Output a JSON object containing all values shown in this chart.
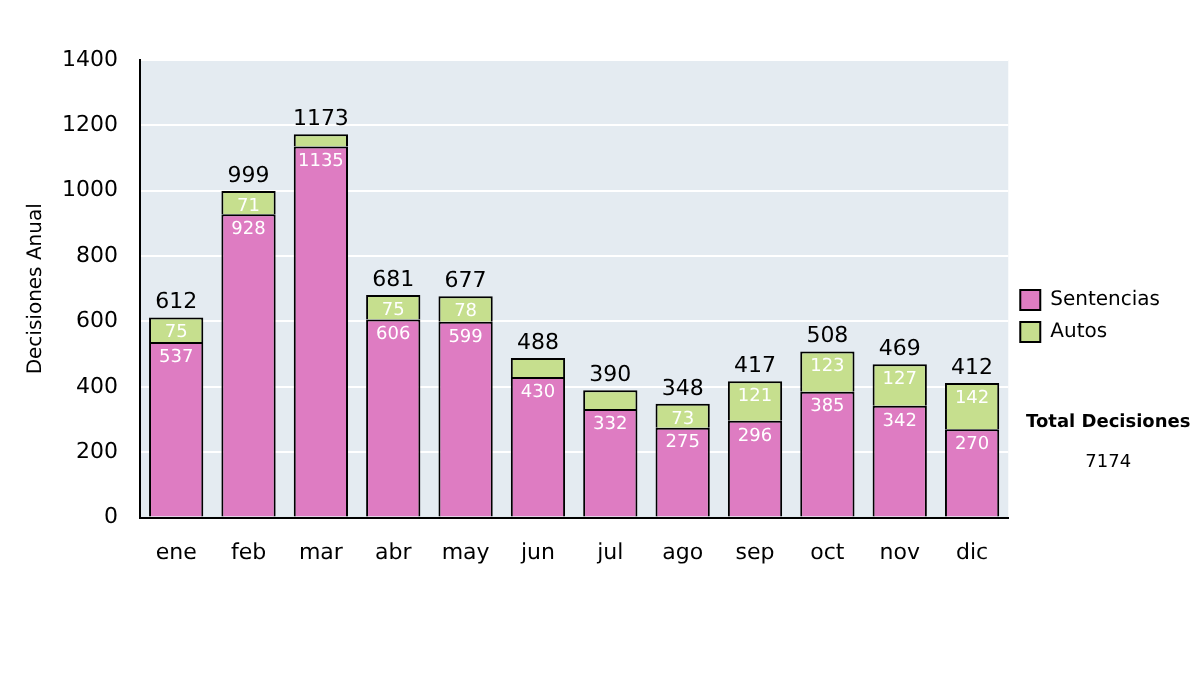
{
  "chart_data": {
    "type": "bar",
    "stacked": true,
    "ylabel": "Decisiones Anual",
    "categories": [
      "ene",
      "feb",
      "mar",
      "abr",
      "may",
      "jun",
      "jul",
      "ago",
      "sep",
      "oct",
      "nov",
      "dic"
    ],
    "series": [
      {
        "name": "Sentencias",
        "color": "#de7cc2",
        "values": [
          537,
          928,
          1135,
          606,
          599,
          430,
          332,
          275,
          296,
          385,
          342,
          270
        ],
        "value_labels": [
          "537",
          "928",
          "1135",
          "606",
          "599",
          "430",
          "332",
          "275",
          "296",
          "385",
          "342",
          "270"
        ]
      },
      {
        "name": "Autos",
        "color": "#c6df8e",
        "values": [
          75,
          71,
          38,
          75,
          78,
          58,
          58,
          73,
          121,
          123,
          127,
          142
        ],
        "value_labels": [
          "75",
          "71",
          null,
          "75",
          "78",
          null,
          null,
          "73",
          "121",
          "123",
          "127",
          "142"
        ]
      }
    ],
    "totals": [
      "612",
      "999",
      "1173",
      "681",
      "677",
      "488",
      "390",
      "348",
      "417",
      "508",
      "469",
      "412"
    ],
    "ylim": [
      0,
      1400
    ],
    "yticks": [
      0,
      200,
      400,
      600,
      800,
      1000,
      1200,
      1400
    ],
    "grid": "y",
    "legend": "right",
    "annotations": [
      "Total Decisiones",
      "7174"
    ]
  }
}
